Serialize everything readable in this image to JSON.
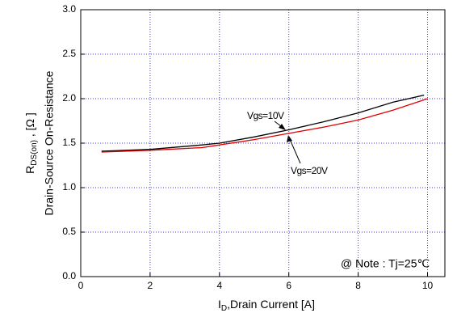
{
  "chart_data": {
    "type": "line",
    "x_label": {
      "main": "I",
      "sub": "D",
      "rest": ",Drain Current [A]"
    },
    "y_label": {
      "main": "R",
      "sub": "DS(on)",
      "rest": " , [Ω ]",
      "line2": "Drain-Source On-Resistance"
    },
    "note": "@ Note : Tj=25℃",
    "xlim": [
      0,
      10.5
    ],
    "xticks": [
      0,
      2,
      4,
      6,
      8,
      10
    ],
    "ylim": [
      0,
      3
    ],
    "yticks": [
      {
        "value": 0,
        "label": "0.0"
      },
      0.5,
      {
        "value": 1,
        "label": "1.0"
      },
      1.5,
      {
        "value": 2,
        "label": "2.0"
      },
      2.5,
      {
        "value": 3,
        "label": "3.0"
      }
    ],
    "grid": true,
    "series": [
      {
        "name": "Vgs=10V",
        "color": "#000000",
        "x": [
          0.6,
          2,
          3.5,
          4,
          5,
          6,
          7,
          8,
          9,
          9.9
        ],
        "values": [
          1.41,
          1.43,
          1.48,
          1.5,
          1.57,
          1.65,
          1.74,
          1.84,
          1.96,
          2.04
        ]
      },
      {
        "name": "Vgs=20V",
        "color": "#e00000",
        "x": [
          0.6,
          2,
          3.5,
          4,
          5,
          6,
          7,
          8,
          9,
          10
        ],
        "values": [
          1.4,
          1.42,
          1.45,
          1.48,
          1.54,
          1.61,
          1.68,
          1.76,
          1.87,
          2.0
        ]
      }
    ]
  }
}
